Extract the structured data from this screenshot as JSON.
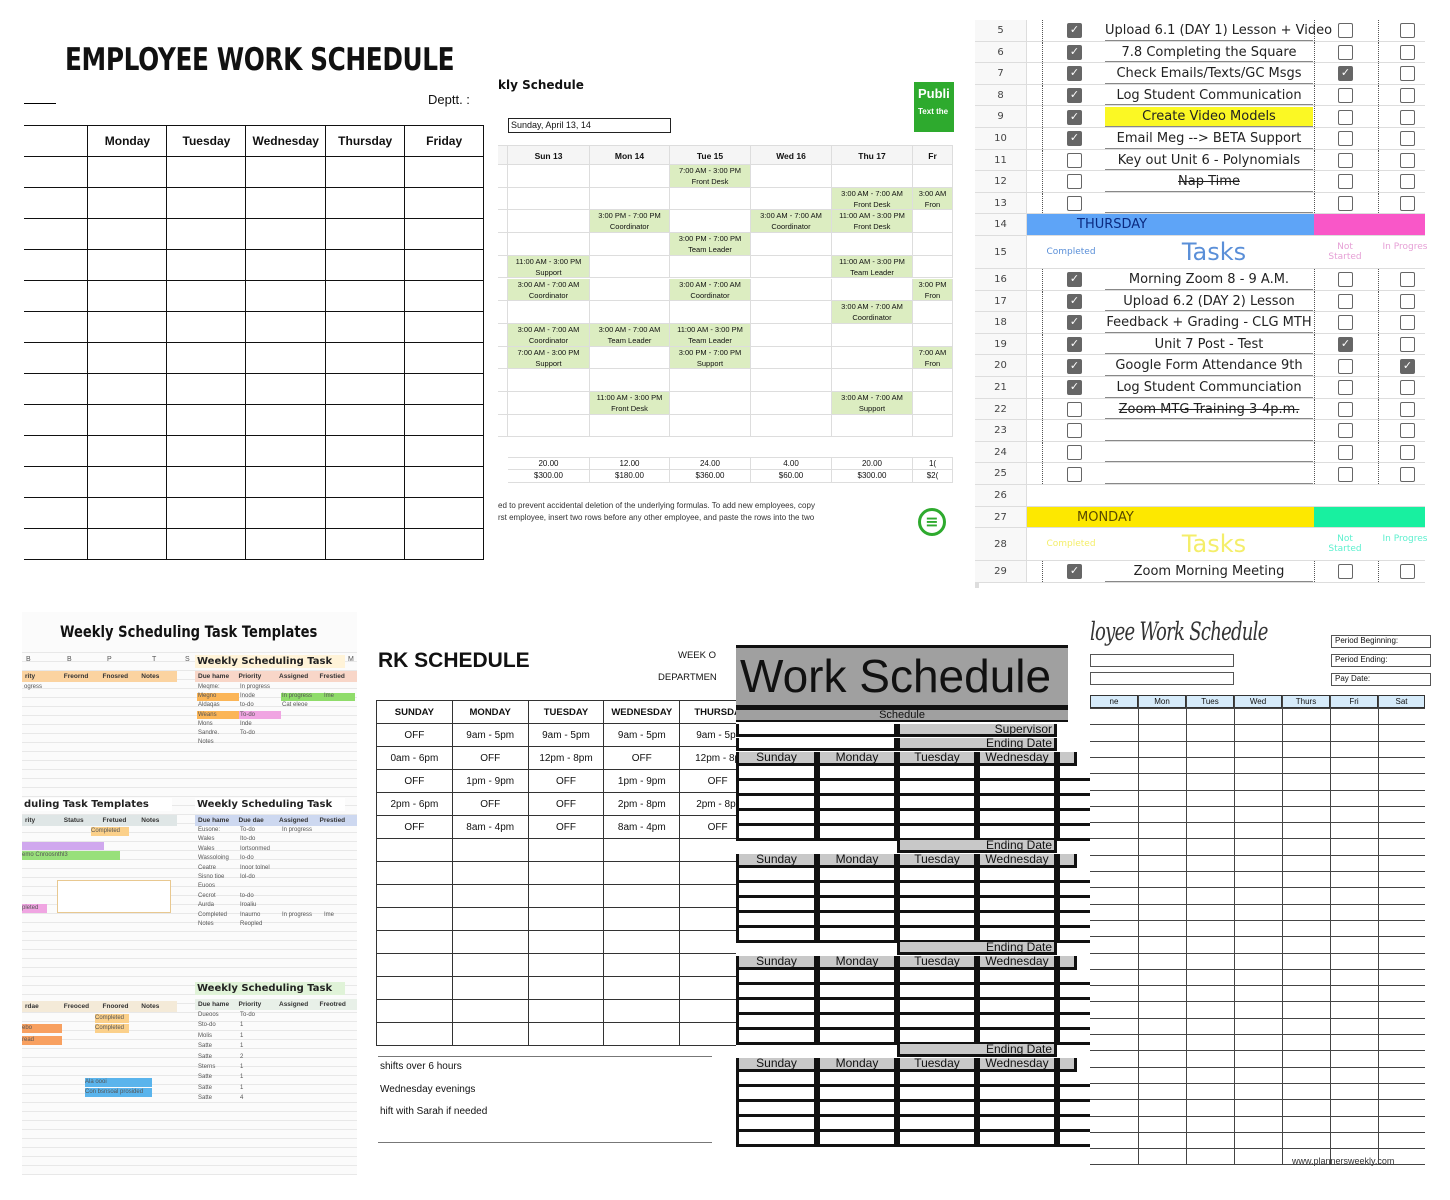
{
  "employee_schedule": {
    "title": "EMPLOYEE WORK SCHEDULE",
    "dept_label": "Deptt. :",
    "days": [
      "Monday",
      "Tuesday",
      "Wednesday",
      "Thursday",
      "Friday"
    ]
  },
  "weekly_schedule": {
    "title": "kly Schedule",
    "date": "Sunday, April 13, 14",
    "publish": {
      "label": "Publi",
      "sub": "Text the"
    },
    "accent": "#2eaa2e",
    "shift_color": "#dcedc1",
    "days": [
      "Sun 13",
      "Mon 14",
      "Tue 15",
      "Wed 16",
      "Thu 17",
      "Fr"
    ],
    "shifts": [
      [
        null,
        null,
        [
          "7:00 AM - 3:00 PM",
          "Front Desk"
        ],
        null,
        null,
        null
      ],
      [
        null,
        null,
        null,
        null,
        [
          "3:00 AM - 7:00 AM",
          "Front Desk"
        ],
        [
          "3:00 AM",
          "Fron"
        ]
      ],
      [
        null,
        [
          "3:00 PM - 7:00 PM",
          "Coordinator"
        ],
        null,
        [
          "3:00 AM - 7:00 AM",
          "Coordinator"
        ],
        [
          "11:00 AM - 3:00 PM",
          "Front Desk"
        ],
        null
      ],
      [
        null,
        null,
        [
          "3:00 PM - 7:00 PM",
          "Team Leader"
        ],
        null,
        null,
        null
      ],
      [
        [
          "11:00 AM - 3:00 PM",
          "Support"
        ],
        null,
        null,
        null,
        [
          "11:00 AM - 3:00 PM",
          "Team Leader"
        ],
        null
      ],
      [
        [
          "3:00 AM - 7:00 AM",
          "Coordinator"
        ],
        null,
        [
          "3:00 AM - 7:00 AM",
          "Coordinator"
        ],
        null,
        null,
        [
          "3:00 PM",
          "Fron"
        ]
      ],
      [
        null,
        null,
        null,
        null,
        [
          "3:00 AM - 7:00 AM",
          "Coordinator"
        ],
        null
      ],
      [
        [
          "3:00 AM - 7:00 AM",
          "Coordinator"
        ],
        [
          "3:00 AM - 7:00 AM",
          "Team Leader"
        ],
        [
          "11:00 AM - 3:00 PM",
          "Team Leader"
        ],
        null,
        null,
        null
      ],
      [
        [
          "7:00 AM - 3:00 PM",
          "Support"
        ],
        null,
        [
          "3:00 PM - 7:00 PM",
          "Support"
        ],
        null,
        null,
        [
          "7:00 AM",
          "Fron"
        ]
      ],
      [
        null,
        null,
        null,
        null,
        null,
        null
      ],
      [
        null,
        [
          "11:00 AM - 3:00 PM",
          "Front Desk"
        ],
        null,
        null,
        [
          "3:00 AM - 7:00 AM",
          "Support"
        ],
        null
      ],
      [
        null,
        null,
        null,
        null,
        null,
        null
      ]
    ],
    "hours": [
      "20.00",
      "12.00",
      "24.00",
      "4.00",
      "20.00",
      "1("
    ],
    "pay": [
      "$300.00",
      "$180.00",
      "$360.00",
      "$60.00",
      "$300.00",
      "$2("
    ],
    "note": [
      "ed to prevent accidental deletion of the underlying formulas. To add new employees, copy",
      "rst employee, insert two rows before any other employee, and paste the rows into the two"
    ],
    "menu_icon": "menu-circle-icon"
  },
  "task_list": {
    "rows": [
      {
        "n": "5",
        "done": true,
        "task": "Upload 6.1 (DAY 1) Lesson + Video",
        "ns": false,
        "ip": false
      },
      {
        "n": "6",
        "done": true,
        "task": "7.8 Completing the Square",
        "ns": false,
        "ip": false
      },
      {
        "n": "7",
        "done": true,
        "task": "Check Emails/Texts/GC Msgs",
        "ns": true,
        "ip": false
      },
      {
        "n": "8",
        "done": true,
        "task": "Log Student Communication",
        "ns": false,
        "ip": false
      },
      {
        "n": "9",
        "done": true,
        "task": "Create Video Models",
        "ns": false,
        "ip": false,
        "highlight": "#fbf824"
      },
      {
        "n": "10",
        "done": true,
        "task": "Email Meg --> BETA Support",
        "ns": false,
        "ip": false
      },
      {
        "n": "11",
        "done": false,
        "task": "Key out Unit 6 - Polynomials",
        "ns": false,
        "ip": false
      },
      {
        "n": "12",
        "done": false,
        "task": "Nap Time",
        "ns": false,
        "ip": false,
        "strike": true
      },
      {
        "n": "13",
        "done": false,
        "task": "",
        "ns": false,
        "ip": false
      },
      {
        "n": "14",
        "day": "THURSDAY",
        "color": "#5ea4f7",
        "color2": "#f957c8",
        "text_color": "#0b2a80"
      },
      {
        "n": "15",
        "header": true,
        "completed": "Completed",
        "tasks": "Tasks",
        "not_started": "Not Started",
        "in_progress": "In Progres",
        "color": "#5a8fd8",
        "color2": "#e6a0d6"
      },
      {
        "n": "16",
        "done": true,
        "task": "Morning Zoom 8 - 9 A.M.",
        "ns": false,
        "ip": false
      },
      {
        "n": "17",
        "done": true,
        "task": "Upload 6.2 (DAY 2) Lesson",
        "ns": false,
        "ip": false
      },
      {
        "n": "18",
        "done": true,
        "task": "Feedback + Grading - CLG MTH",
        "ns": false,
        "ip": false
      },
      {
        "n": "19",
        "done": true,
        "task": "Unit 7 Post - Test",
        "ns": true,
        "ip": false
      },
      {
        "n": "20",
        "done": true,
        "task": "Google Form Attendance 9th",
        "ns": false,
        "ip": true
      },
      {
        "n": "21",
        "done": true,
        "task": "Log Student Communciation",
        "ns": false,
        "ip": false
      },
      {
        "n": "22",
        "done": false,
        "task": "Zoom MTG Training 3-4p.m.",
        "ns": false,
        "ip": false,
        "strike": true
      },
      {
        "n": "23",
        "done": false,
        "task": "",
        "ns": false,
        "ip": false
      },
      {
        "n": "24",
        "done": false,
        "task": "",
        "ns": false,
        "ip": false
      },
      {
        "n": "25",
        "done": false,
        "task": "",
        "ns": false,
        "ip": false
      },
      {
        "n": "26",
        "blank": true
      },
      {
        "n": "27",
        "day": "MONDAY",
        "color": "#fde800",
        "color2": "#18f0a0",
        "text_color": "#5a4a00"
      },
      {
        "n": "28",
        "header": true,
        "completed": "Completed",
        "tasks": "Tasks",
        "not_started": "Not Started",
        "in_progress": "In Progres",
        "color": "#f4ee6a",
        "color2": "#5ef0cf"
      },
      {
        "n": "29",
        "done": true,
        "task": "Zoom Morning Meeting",
        "ns": false,
        "ip": false
      }
    ]
  },
  "task_templates": {
    "title": "Weekly Scheduling Task Templates",
    "col_letters": [
      "B",
      "B",
      "P",
      "T",
      "S",
      "M"
    ],
    "block1": {
      "headers": [
        "rity",
        "Freornd",
        "Fnosred",
        "Notes"
      ],
      "cells": [
        "ogress"
      ]
    },
    "block2": {
      "title": "Weekly Scheduling Task",
      "headers": [
        "Due hame",
        "Priority",
        "Assigned",
        "Frestied"
      ],
      "rows": [
        [
          "Meqme:",
          "In progress"
        ],
        [
          "Megno",
          "Inode",
          "In progress",
          "Ime"
        ],
        [
          "Aldaqas",
          "to-do",
          "Cat eleoe"
        ],
        [
          "Weans",
          "To-do"
        ],
        [
          "Mons",
          "Inde"
        ],
        [
          "Sandre.",
          "To-do"
        ],
        [
          "Notes"
        ]
      ]
    },
    "block3": {
      "title": "duling Task Templates",
      "headers": [
        "rity",
        "Status",
        "Fretued",
        "Notes"
      ],
      "cells": [
        "rogress",
        "Completed",
        "emo",
        "Cnroosnthl3",
        "pleted"
      ]
    },
    "block4": {
      "title": "Weekly Scheduling Task",
      "headers": [
        "Due hame",
        "Due dae",
        "Assigned",
        "Prestied"
      ],
      "rows": [
        [
          "Eusone:",
          "To-do",
          "In progress"
        ],
        [
          "Wales",
          "Ito-do"
        ],
        [
          "Wales",
          "Iortsonmed"
        ],
        [
          "Wassoloing",
          "Io-do"
        ],
        [
          "Ceatre",
          "Inoor tolnel"
        ],
        [
          "Sisno tioe",
          "Iol-do"
        ],
        [
          "Euoos"
        ],
        [
          "Cecrot",
          "to-do"
        ],
        [
          "Aurda",
          "Iroaliu"
        ],
        [
          "Completed",
          "Inaurno",
          "In progress",
          "Ime"
        ],
        [
          "Notes",
          "Reopled"
        ]
      ]
    },
    "block5": {
      "headers": [
        "rdae",
        "Freoced",
        "Fnoored",
        "Notes"
      ],
      "cells": [
        "Completed",
        "Completed",
        "ebo",
        "read",
        "Ala oooi",
        "Con bsnsoal prosided"
      ]
    },
    "block6": {
      "title": "Weekly Scheduling Task",
      "headers": [
        "Due hame",
        "Priority",
        "Assigned",
        "Freotred"
      ],
      "rows": [
        [
          "Dueoos",
          "To-do"
        ],
        [
          "Sto-do",
          "1"
        ],
        [
          "Molis",
          "1"
        ],
        [
          "Satte",
          "1"
        ],
        [
          "Satte",
          "2"
        ],
        [
          "Sterns",
          "1"
        ],
        [
          "Satte",
          "1"
        ],
        [
          "Satte",
          "1"
        ],
        [
          "Satte",
          "4"
        ]
      ]
    }
  },
  "work_schedule_off": {
    "title": "RK SCHEDULE",
    "week_label": "WEEK O",
    "dept_label": "DEPARTMEN",
    "days": [
      "SUNDAY",
      "MONDAY",
      "TUESDAY",
      "WEDNESDAY",
      "THURSDA"
    ],
    "rows": [
      [
        "OFF",
        "9am - 5pm",
        "9am - 5pm",
        "9am - 5pm",
        "9am - 5pr"
      ],
      [
        "0am - 6pm",
        "OFF",
        "12pm - 8pm",
        "OFF",
        "12pm - 8p"
      ],
      [
        "OFF",
        "1pm - 9pm",
        "OFF",
        "1pm - 9pm",
        "OFF"
      ],
      [
        "2pm - 6pm",
        "OFF",
        "OFF",
        "2pm - 8pm",
        "2pm - 8pr"
      ],
      [
        "OFF",
        "8am - 4pm",
        "OFF",
        "8am - 4pm",
        "OFF"
      ]
    ],
    "notes": [
      "shifts over 6 hours",
      "Wednesday evenings",
      "hift with Sarah if needed"
    ]
  },
  "work_schedule_gray": {
    "title": "Work Schedule",
    "subtitle": "Schedule",
    "supervisor": "Supervisor",
    "ending_date": "Ending Date",
    "days": [
      "Sunday",
      "Monday",
      "Tuesday",
      "Wednesday"
    ]
  },
  "employee_work_schedule": {
    "title": "loyee Work Schedule",
    "fields": [
      "Period Beginning:",
      "Period Ending:",
      "Pay Date:"
    ],
    "columns": [
      "ne",
      "Mon",
      "Tues",
      "Wed",
      "Thurs",
      "Fri",
      "Sat"
    ],
    "header_color": "#d6ebfa",
    "website": "www.plannersweekly.com"
  }
}
